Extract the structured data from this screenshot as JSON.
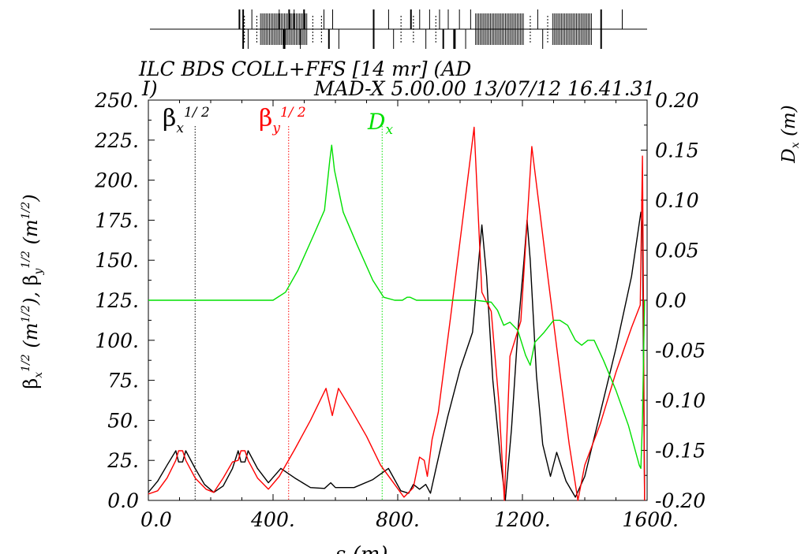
{
  "chart_data": {
    "type": "line",
    "title_line1": "ILC BDS COLL+FFS [14 mr] (AD",
    "title_line2_left": "I)",
    "title_line2_right": "MAD-X 5.00.00  13/07/12 16.41.31",
    "xlabel": "s (m)",
    "ylabel_left": {
      "b1": "β",
      "s1": "x",
      "p1": "1/2",
      "u1": " (m",
      "p2": "1/2",
      "u2": "), ",
      "b2": "β",
      "s2": "y",
      "p3": "1/2",
      "u3": " (m",
      "p4": "1/2",
      "u4": ")"
    },
    "ylabel_right": {
      "d": "D",
      "s": "x",
      "u": " (m)"
    },
    "xlim": [
      0,
      1600
    ],
    "ylim_left": [
      0,
      250
    ],
    "ylim_right": [
      -0.2,
      0.2
    ],
    "x_ticks": [
      "0.0",
      "400.",
      "800.",
      "1200.",
      "1600."
    ],
    "x_tick_values": [
      0,
      400,
      800,
      1200,
      1600
    ],
    "y_left_ticks": [
      "0.0",
      "25.",
      "50.",
      "75.",
      "100.",
      "125.",
      "150.",
      "175.",
      "200.",
      "225.",
      "250."
    ],
    "y_left_tick_values": [
      0,
      25,
      50,
      75,
      100,
      125,
      150,
      175,
      200,
      225,
      250
    ],
    "y_right_ticks": [
      "-0.20",
      "-0.15",
      "-0.10",
      "-0.05",
      "0.0",
      "0.05",
      "0.10",
      "0.15",
      "0.20"
    ],
    "y_right_tick_values": [
      -0.2,
      -0.15,
      -0.1,
      -0.05,
      0.0,
      0.05,
      0.1,
      0.15,
      0.2
    ],
    "legend": [
      {
        "base": "β",
        "sub": "x",
        "sup": "1/ 2",
        "color": "#000000",
        "x": 150
      },
      {
        "base": "β",
        "sub": "y",
        "sup": "1/ 2",
        "color": "#ff0000",
        "x": 450
      },
      {
        "base": "D",
        "sub": "x",
        "sup": "",
        "color": "#00e000",
        "x": 750
      }
    ],
    "series": [
      {
        "key": "betax",
        "color": "#000000",
        "axis": "left",
        "points": [
          [
            0,
            5
          ],
          [
            30,
            12
          ],
          [
            60,
            22
          ],
          [
            88,
            31
          ],
          [
            97,
            24
          ],
          [
            110,
            24
          ],
          [
            120,
            31
          ],
          [
            150,
            20
          ],
          [
            180,
            10
          ],
          [
            210,
            5
          ],
          [
            240,
            9
          ],
          [
            270,
            20
          ],
          [
            288,
            31
          ],
          [
            297,
            24
          ],
          [
            310,
            24
          ],
          [
            320,
            31
          ],
          [
            350,
            20
          ],
          [
            385,
            11
          ],
          [
            425,
            20
          ],
          [
            470,
            14
          ],
          [
            520,
            8
          ],
          [
            565,
            7.5
          ],
          [
            585,
            11
          ],
          [
            600,
            8
          ],
          [
            660,
            8
          ],
          [
            720,
            13
          ],
          [
            770,
            20
          ],
          [
            810,
            6
          ],
          [
            835,
            4.5
          ],
          [
            850,
            10
          ],
          [
            870,
            7
          ],
          [
            890,
            10
          ],
          [
            905,
            4.5
          ],
          [
            925,
            22
          ],
          [
            960,
            52
          ],
          [
            1000,
            82
          ],
          [
            1040,
            105
          ],
          [
            1060,
            150
          ],
          [
            1070,
            172
          ],
          [
            1085,
            140
          ],
          [
            1105,
            75
          ],
          [
            1130,
            25
          ],
          [
            1145,
            0
          ],
          [
            1165,
            45
          ],
          [
            1185,
            105
          ],
          [
            1205,
            150
          ],
          [
            1215,
            175
          ],
          [
            1225,
            150
          ],
          [
            1245,
            78
          ],
          [
            1265,
            35
          ],
          [
            1290,
            15
          ],
          [
            1310,
            30
          ],
          [
            1340,
            12
          ],
          [
            1370,
            2
          ],
          [
            1400,
            15
          ],
          [
            1450,
            55
          ],
          [
            1500,
            95
          ],
          [
            1550,
            140
          ],
          [
            1580,
            180
          ],
          [
            1585,
            170
          ],
          [
            1592,
            0
          ]
        ]
      },
      {
        "key": "betay",
        "color": "#ff0000",
        "axis": "left",
        "points": [
          [
            0,
            4
          ],
          [
            30,
            6
          ],
          [
            60,
            14
          ],
          [
            88,
            25
          ],
          [
            97,
            31
          ],
          [
            110,
            31
          ],
          [
            120,
            25
          ],
          [
            150,
            14
          ],
          [
            185,
            7
          ],
          [
            210,
            5
          ],
          [
            240,
            14
          ],
          [
            270,
            24
          ],
          [
            288,
            25
          ],
          [
            297,
            31
          ],
          [
            310,
            31
          ],
          [
            320,
            25
          ],
          [
            350,
            14
          ],
          [
            385,
            7
          ],
          [
            420,
            15
          ],
          [
            470,
            32
          ],
          [
            520,
            50
          ],
          [
            570,
            70
          ],
          [
            590,
            53
          ],
          [
            610,
            70
          ],
          [
            650,
            57
          ],
          [
            700,
            40
          ],
          [
            745,
            22
          ],
          [
            790,
            10
          ],
          [
            820,
            2
          ],
          [
            850,
            8
          ],
          [
            870,
            27
          ],
          [
            885,
            25
          ],
          [
            895,
            15
          ],
          [
            910,
            38
          ],
          [
            930,
            55
          ],
          [
            970,
            115
          ],
          [
            1010,
            178
          ],
          [
            1045,
            233
          ],
          [
            1070,
            130
          ],
          [
            1100,
            118
          ],
          [
            1125,
            60
          ],
          [
            1142,
            0
          ],
          [
            1160,
            90
          ],
          [
            1195,
            112
          ],
          [
            1230,
            221
          ],
          [
            1275,
            150
          ],
          [
            1320,
            80
          ],
          [
            1350,
            35
          ],
          [
            1378,
            0
          ],
          [
            1400,
            22
          ],
          [
            1450,
            48
          ],
          [
            1500,
            80
          ],
          [
            1550,
            108
          ],
          [
            1578,
            122
          ],
          [
            1585,
            215
          ],
          [
            1588,
            130
          ],
          [
            1592,
            0
          ]
        ]
      },
      {
        "key": "dx",
        "color": "#00e000",
        "axis": "right",
        "points": [
          [
            0,
            0
          ],
          [
            400,
            0
          ],
          [
            440,
            0.008
          ],
          [
            480,
            0.03
          ],
          [
            530,
            0.065
          ],
          [
            565,
            0.09
          ],
          [
            582,
            0.14
          ],
          [
            588,
            0.155
          ],
          [
            597,
            0.13
          ],
          [
            625,
            0.088
          ],
          [
            670,
            0.055
          ],
          [
            720,
            0.02
          ],
          [
            755,
            0.003
          ],
          [
            790,
            0
          ],
          [
            815,
            0
          ],
          [
            830,
            0.003
          ],
          [
            840,
            0.003
          ],
          [
            860,
            0
          ],
          [
            900,
            0
          ],
          [
            1050,
            0
          ],
          [
            1100,
            -0.002
          ],
          [
            1120,
            -0.01
          ],
          [
            1140,
            -0.025
          ],
          [
            1160,
            -0.022
          ],
          [
            1185,
            -0.03
          ],
          [
            1210,
            -0.055
          ],
          [
            1225,
            -0.065
          ],
          [
            1240,
            -0.042
          ],
          [
            1270,
            -0.032
          ],
          [
            1300,
            -0.02
          ],
          [
            1320,
            -0.02
          ],
          [
            1345,
            -0.025
          ],
          [
            1370,
            -0.04
          ],
          [
            1390,
            -0.045
          ],
          [
            1410,
            -0.04
          ],
          [
            1430,
            -0.04
          ],
          [
            1460,
            -0.06
          ],
          [
            1500,
            -0.09
          ],
          [
            1540,
            -0.125
          ],
          [
            1575,
            -0.165
          ],
          [
            1580,
            -0.168
          ],
          [
            1585,
            -0.12
          ],
          [
            1592,
            0
          ]
        ]
      }
    ]
  },
  "lattice": {
    "dense_blocks": [
      [
        445,
        635
      ],
      [
        1310,
        1505
      ],
      [
        1620,
        1780
      ]
    ],
    "line_thin": [
      [
        355,
        1605
      ]
    ],
    "ticks": [
      {
        "s": 360,
        "t": "u",
        "w": 2
      },
      {
        "s": 375,
        "t": "b",
        "w": 2
      },
      {
        "s": 395,
        "t": "d",
        "w": 1
      },
      {
        "s": 410,
        "t": "u",
        "w": 1
      },
      {
        "s": 520,
        "t": "u",
        "w": 1
      },
      {
        "s": 540,
        "t": "d",
        "w": 3
      },
      {
        "s": 560,
        "t": "u",
        "w": 2
      },
      {
        "s": 580,
        "t": "u",
        "w": 1
      },
      {
        "s": 605,
        "t": "d",
        "w": 1
      },
      {
        "s": 620,
        "t": "u",
        "w": 2
      },
      {
        "s": 700,
        "t": "u",
        "w": 1
      },
      {
        "s": 720,
        "t": "d",
        "w": 2
      },
      {
        "s": 735,
        "t": "u",
        "w": 1
      },
      {
        "s": 760,
        "t": "d",
        "w": 1
      },
      {
        "s": 900,
        "t": "b",
        "w": 2
      },
      {
        "s": 960,
        "t": "u",
        "w": 1
      },
      {
        "s": 980,
        "t": "d",
        "w": 1
      },
      {
        "s": 1050,
        "t": "u",
        "w": 2
      },
      {
        "s": 1085,
        "t": "u",
        "w": 1
      },
      {
        "s": 1110,
        "t": "d",
        "w": 1
      },
      {
        "s": 1125,
        "t": "u",
        "w": 1
      },
      {
        "s": 1165,
        "t": "u",
        "w": 1
      },
      {
        "s": 1180,
        "t": "d",
        "w": 2
      },
      {
        "s": 1200,
        "t": "u",
        "w": 1
      },
      {
        "s": 1225,
        "t": "d",
        "w": 3
      },
      {
        "s": 1245,
        "t": "u",
        "w": 1
      },
      {
        "s": 1270,
        "t": "d",
        "w": 1
      },
      {
        "s": 1290,
        "t": "u",
        "w": 1
      },
      {
        "s": 1560,
        "t": "u",
        "w": 1
      },
      {
        "s": 1580,
        "t": "d",
        "w": 1
      },
      {
        "s": 1815,
        "t": "b",
        "w": 2
      },
      {
        "s": 1900,
        "t": "u",
        "w": 1
      }
    ]
  }
}
